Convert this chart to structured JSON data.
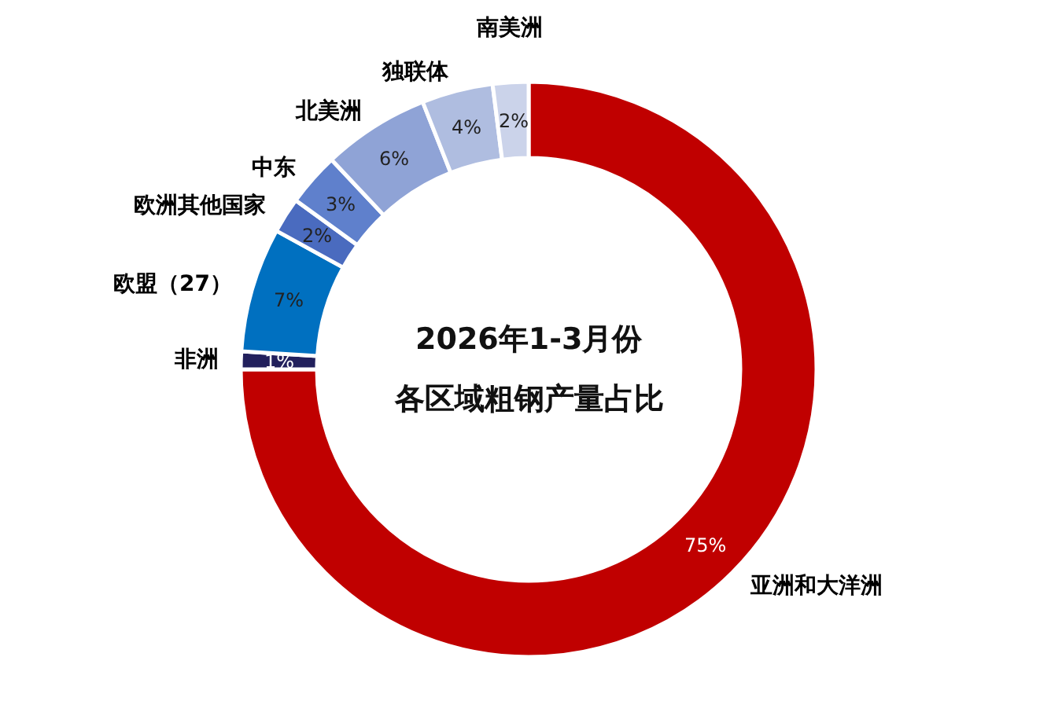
{
  "chart_data": {
    "type": "donut",
    "title": "2026年1-3月份",
    "subtitle": "各区域粗钢产量占比",
    "categories": [
      "亚洲和大洋洲",
      "非洲",
      "欧盟（27）",
      "欧洲其他国家",
      "中东",
      "北美洲",
      "独联体",
      "南美洲"
    ],
    "values": [
      75,
      1,
      7,
      2,
      3,
      6,
      4,
      2
    ],
    "colors": [
      "#c00000",
      "#22205c",
      "#0070c0",
      "#4a6bbf",
      "#5f80cc",
      "#8fa3d6",
      "#afbde0",
      "#cbd3ea"
    ],
    "value_labels": [
      "75%",
      "1%",
      "7%",
      "2%",
      "3%",
      "6%",
      "4%",
      "2%"
    ]
  }
}
